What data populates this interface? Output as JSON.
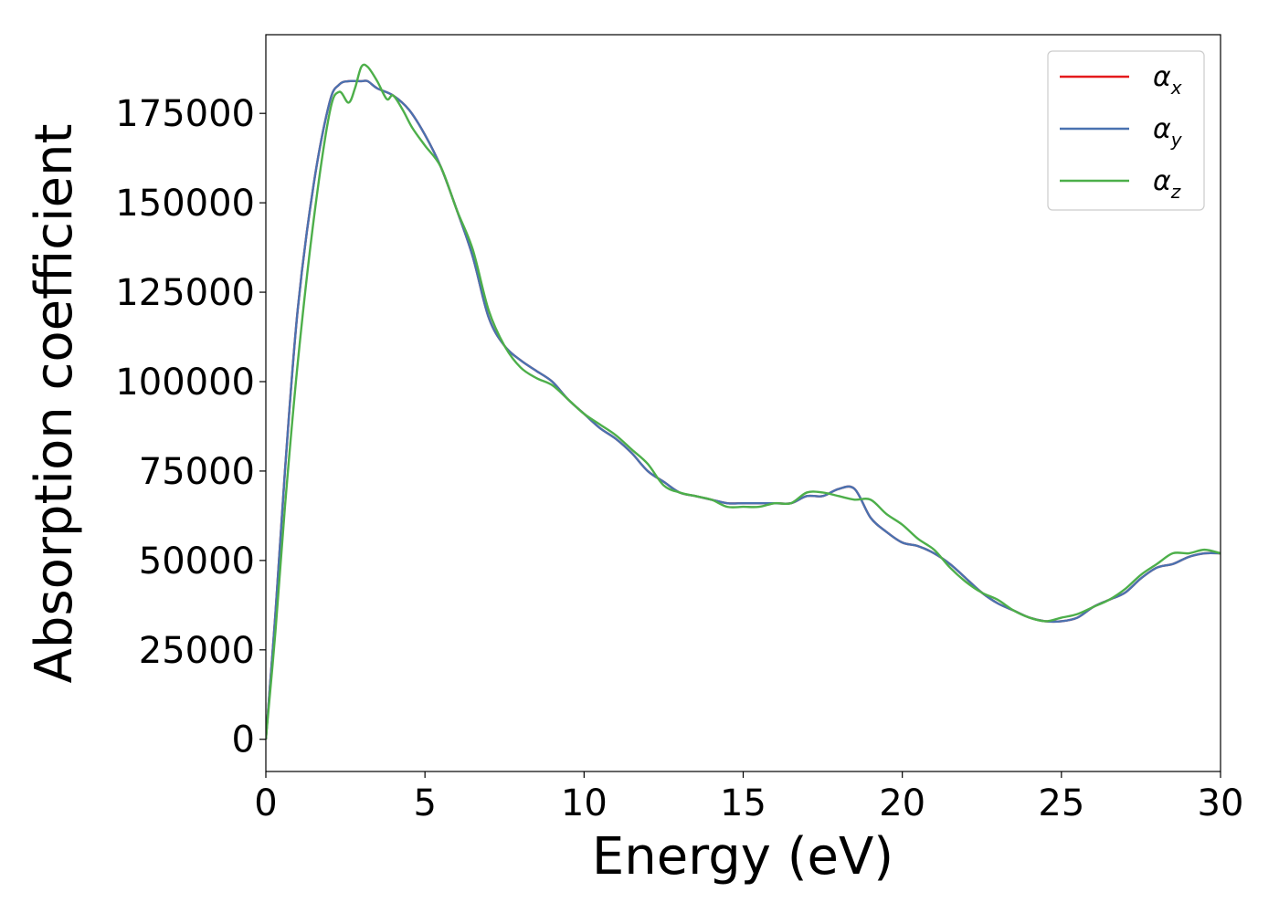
{
  "chart_data": {
    "type": "line",
    "xlabel": "Energy (eV)",
    "ylabel": "Absorption coefficient",
    "xlim": [
      0,
      30
    ],
    "ylim": [
      -9000,
      197000
    ],
    "xticks": [
      0,
      5,
      10,
      15,
      20,
      25,
      30
    ],
    "yticks": [
      0,
      25000,
      50000,
      75000,
      100000,
      125000,
      150000,
      175000
    ],
    "grid": false,
    "legend_position": "top-right",
    "series": [
      {
        "name": "α_x",
        "legend_base": "α",
        "legend_sub": "x",
        "color": "#e41a1c",
        "x": [
          0,
          0.3,
          0.6,
          1.0,
          1.5,
          2.0,
          2.3,
          2.6,
          3.0,
          3.2,
          3.5,
          4.0,
          4.5,
          5.0,
          5.5,
          6.0,
          6.5,
          7.0,
          7.5,
          8.0,
          8.5,
          9.0,
          9.5,
          10.0,
          10.5,
          11.0,
          11.5,
          12.0,
          12.5,
          13.0,
          13.5,
          14.0,
          14.5,
          15.0,
          15.5,
          16.0,
          16.5,
          17.0,
          17.5,
          18.0,
          18.5,
          19.0,
          19.5,
          20.0,
          20.5,
          21.0,
          21.5,
          22.0,
          22.5,
          23.0,
          23.5,
          24.0,
          24.5,
          25.0,
          25.5,
          26.0,
          26.5,
          27.0,
          27.5,
          28.0,
          28.5,
          29.0,
          29.5,
          30.0
        ],
        "y": [
          0,
          35000,
          75000,
          120000,
          155000,
          178000,
          183000,
          184000,
          184000,
          184000,
          182000,
          180000,
          176000,
          169000,
          160000,
          148000,
          135000,
          118000,
          110000,
          106000,
          103000,
          100000,
          95000,
          91000,
          87000,
          84000,
          80000,
          75000,
          72000,
          69000,
          68000,
          67000,
          66000,
          66000,
          66000,
          66000,
          66000,
          68000,
          68000,
          70000,
          70000,
          62000,
          58000,
          55000,
          54000,
          52000,
          49000,
          45000,
          41000,
          38000,
          36000,
          34000,
          33000,
          33000,
          34000,
          37000,
          39000,
          41000,
          45000,
          48000,
          49000,
          51000,
          52000,
          52000
        ]
      },
      {
        "name": "α_y",
        "legend_base": "α",
        "legend_sub": "y",
        "color": "#4a72b0",
        "x": [
          0,
          0.3,
          0.6,
          1.0,
          1.5,
          2.0,
          2.3,
          2.6,
          3.0,
          3.2,
          3.5,
          4.0,
          4.5,
          5.0,
          5.5,
          6.0,
          6.5,
          7.0,
          7.5,
          8.0,
          8.5,
          9.0,
          9.5,
          10.0,
          10.5,
          11.0,
          11.5,
          12.0,
          12.5,
          13.0,
          13.5,
          14.0,
          14.5,
          15.0,
          15.5,
          16.0,
          16.5,
          17.0,
          17.5,
          18.0,
          18.5,
          19.0,
          19.5,
          20.0,
          20.5,
          21.0,
          21.5,
          22.0,
          22.5,
          23.0,
          23.5,
          24.0,
          24.5,
          25.0,
          25.5,
          26.0,
          26.5,
          27.0,
          27.5,
          28.0,
          28.5,
          29.0,
          29.5,
          30.0
        ],
        "y": [
          0,
          35000,
          75000,
          120000,
          155000,
          178000,
          183000,
          184000,
          184000,
          184000,
          182000,
          180000,
          176000,
          169000,
          160000,
          148000,
          135000,
          118000,
          110000,
          106000,
          103000,
          100000,
          95000,
          91000,
          87000,
          84000,
          80000,
          75000,
          72000,
          69000,
          68000,
          67000,
          66000,
          66000,
          66000,
          66000,
          66000,
          68000,
          68000,
          70000,
          70000,
          62000,
          58000,
          55000,
          54000,
          52000,
          49000,
          45000,
          41000,
          38000,
          36000,
          34000,
          33000,
          33000,
          34000,
          37000,
          39000,
          41000,
          45000,
          48000,
          49000,
          51000,
          52000,
          52000
        ]
      },
      {
        "name": "α_z",
        "legend_base": "α",
        "legend_sub": "z",
        "color": "#4daf4a",
        "x": [
          0,
          0.3,
          0.6,
          1.0,
          1.5,
          2.0,
          2.3,
          2.6,
          2.8,
          3.0,
          3.2,
          3.5,
          3.8,
          4.0,
          4.3,
          4.6,
          5.0,
          5.5,
          6.0,
          6.5,
          7.0,
          7.5,
          8.0,
          8.5,
          9.0,
          9.5,
          10.0,
          10.5,
          11.0,
          11.5,
          12.0,
          12.5,
          13.0,
          13.5,
          14.0,
          14.5,
          15.0,
          15.5,
          16.0,
          16.5,
          17.0,
          17.5,
          18.0,
          18.5,
          19.0,
          19.5,
          20.0,
          20.5,
          21.0,
          21.5,
          22.0,
          22.5,
          23.0,
          23.5,
          24.0,
          24.5,
          25.0,
          25.5,
          26.0,
          26.5,
          27.0,
          27.5,
          28.0,
          28.5,
          29.0,
          29.5,
          30.0
        ],
        "y": [
          0,
          30000,
          65000,
          105000,
          145000,
          175000,
          181000,
          178000,
          182000,
          188000,
          188000,
          184000,
          179000,
          180000,
          176000,
          171000,
          166000,
          160000,
          148000,
          137000,
          120000,
          110000,
          104000,
          101000,
          99000,
          95000,
          91000,
          88000,
          85000,
          81000,
          77000,
          71000,
          69000,
          68000,
          67000,
          65000,
          65000,
          65000,
          66000,
          66000,
          69000,
          69000,
          68000,
          67000,
          67000,
          63000,
          60000,
          56000,
          53000,
          48000,
          44000,
          41000,
          39000,
          36000,
          34000,
          33000,
          34000,
          35000,
          37000,
          39000,
          42000,
          46000,
          49000,
          52000,
          52000,
          53000,
          52000
        ]
      }
    ]
  }
}
